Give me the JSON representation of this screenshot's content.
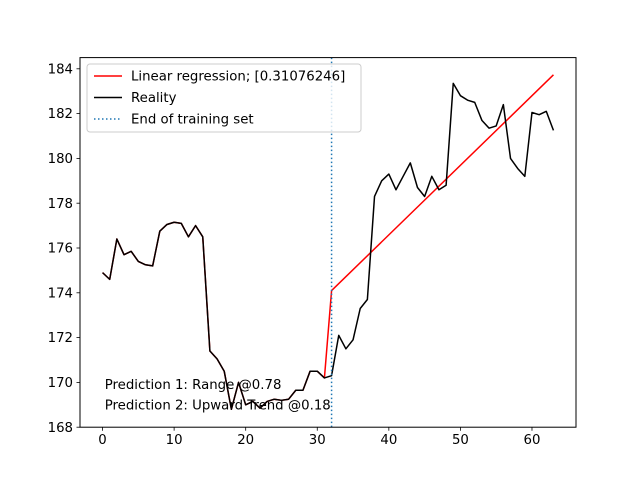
{
  "chart_data": {
    "type": "line",
    "title": "",
    "xlabel": "",
    "ylabel": "",
    "xlim": [
      -3.15,
      66.15
    ],
    "ylim": [
      168,
      184.5
    ],
    "xticks": [
      0,
      10,
      20,
      30,
      40,
      50,
      60
    ],
    "yticks": [
      168,
      170,
      172,
      174,
      176,
      178,
      180,
      182,
      184
    ],
    "grid": false,
    "legend_position": "top-left",
    "legend": [
      {
        "label": "Linear regression; [0.31076246]",
        "style": "solid",
        "color": "#ff0000"
      },
      {
        "label": "Reality",
        "style": "solid",
        "color": "#000000"
      },
      {
        "label": "End of training set",
        "style": "dotted",
        "color": "#1f77b4"
      }
    ],
    "series": [
      {
        "name": "Linear regression; [0.31076246]",
        "color": "#ff0000",
        "points": [
          [
            0,
            174.9
          ],
          [
            1,
            174.6
          ],
          [
            2,
            176.4
          ],
          [
            3,
            175.7
          ],
          [
            4,
            175.85
          ],
          [
            5,
            175.4
          ],
          [
            6,
            175.25
          ],
          [
            7,
            175.2
          ],
          [
            8,
            176.75
          ],
          [
            9,
            177.05
          ],
          [
            10,
            177.15
          ],
          [
            11,
            177.1
          ],
          [
            12,
            176.5
          ],
          [
            13,
            177.0
          ],
          [
            14,
            176.5
          ],
          [
            15,
            171.4
          ],
          [
            16,
            171.05
          ],
          [
            17,
            170.5
          ],
          [
            18,
            168.8
          ],
          [
            19,
            170.0
          ],
          [
            20,
            169.0
          ],
          [
            21,
            169.15
          ],
          [
            22,
            168.85
          ],
          [
            23,
            169.15
          ],
          [
            24,
            169.25
          ],
          [
            25,
            169.2
          ],
          [
            26,
            169.25
          ],
          [
            27,
            169.65
          ],
          [
            28,
            169.65
          ],
          [
            29,
            170.5
          ],
          [
            30,
            170.5
          ],
          [
            31,
            170.2
          ],
          [
            32,
            174.1
          ],
          [
            63,
            183.73
          ]
        ]
      },
      {
        "name": "Reality",
        "color": "#000000",
        "points": [
          [
            0,
            174.9
          ],
          [
            1,
            174.6
          ],
          [
            2,
            176.4
          ],
          [
            3,
            175.7
          ],
          [
            4,
            175.85
          ],
          [
            5,
            175.4
          ],
          [
            6,
            175.25
          ],
          [
            7,
            175.2
          ],
          [
            8,
            176.75
          ],
          [
            9,
            177.05
          ],
          [
            10,
            177.15
          ],
          [
            11,
            177.1
          ],
          [
            12,
            176.5
          ],
          [
            13,
            177.0
          ],
          [
            14,
            176.5
          ],
          [
            15,
            171.4
          ],
          [
            16,
            171.05
          ],
          [
            17,
            170.5
          ],
          [
            18,
            168.8
          ],
          [
            19,
            170.0
          ],
          [
            20,
            169.0
          ],
          [
            21,
            169.15
          ],
          [
            22,
            168.85
          ],
          [
            23,
            169.15
          ],
          [
            24,
            169.25
          ],
          [
            25,
            169.2
          ],
          [
            26,
            169.25
          ],
          [
            27,
            169.65
          ],
          [
            28,
            169.65
          ],
          [
            29,
            170.5
          ],
          [
            30,
            170.5
          ],
          [
            31,
            170.2
          ],
          [
            32,
            170.3
          ],
          [
            33,
            172.1
          ],
          [
            34,
            171.5
          ],
          [
            35,
            171.9
          ],
          [
            36,
            173.3
          ],
          [
            37,
            173.7
          ],
          [
            38,
            178.3
          ],
          [
            39,
            179.0
          ],
          [
            40,
            179.3
          ],
          [
            41,
            178.6
          ],
          [
            42,
            179.2
          ],
          [
            43,
            179.8
          ],
          [
            44,
            178.7
          ],
          [
            45,
            178.3
          ],
          [
            46,
            179.2
          ],
          [
            47,
            178.6
          ],
          [
            48,
            178.8
          ],
          [
            49,
            183.35
          ],
          [
            50,
            182.8
          ],
          [
            51,
            182.6
          ],
          [
            52,
            182.5
          ],
          [
            53,
            181.7
          ],
          [
            54,
            181.35
          ],
          [
            55,
            181.45
          ],
          [
            56,
            182.4
          ],
          [
            57,
            180.0
          ],
          [
            58,
            179.55
          ],
          [
            59,
            179.2
          ],
          [
            60,
            182.05
          ],
          [
            61,
            181.95
          ],
          [
            62,
            182.1
          ],
          [
            63,
            181.25
          ]
        ]
      }
    ],
    "vlines": [
      {
        "name": "End of training set",
        "x": 32,
        "color": "#1f77b4",
        "style": "dotted"
      }
    ],
    "annotations": [
      {
        "text": "Prediction 1: Range @0.78",
        "x": 0.3,
        "y": 169.9
      },
      {
        "text": "Prediction 2: Upward Trend @0.18",
        "x": 0.3,
        "y": 169.0
      }
    ]
  }
}
